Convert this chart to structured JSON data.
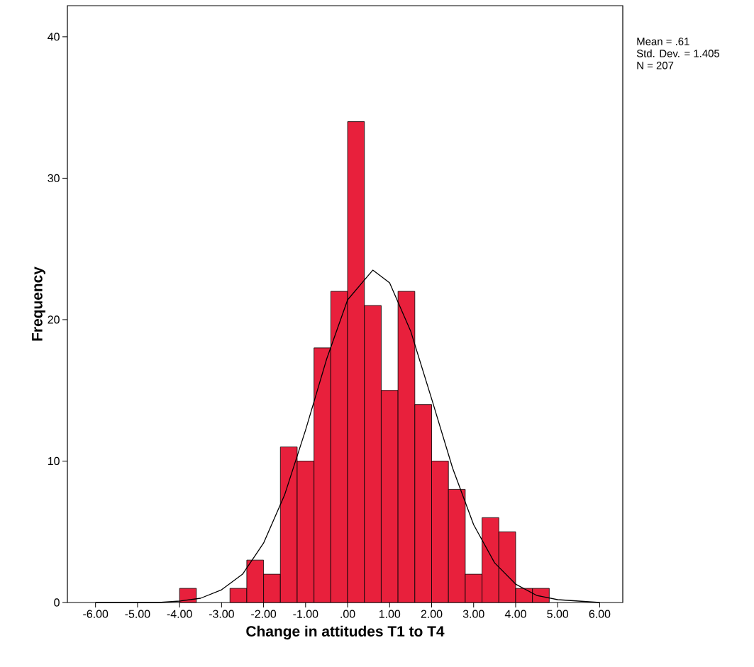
{
  "chart_data": {
    "type": "histogram",
    "xlabel": "Change in attitudes T1 to T4",
    "ylabel": "Frequency",
    "annotations": [
      "Mean = .61",
      "Std. Dev. = 1.405",
      "N = 207"
    ],
    "series": [
      {
        "color": "#e8203c",
        "bins": [
          -4.0,
          -3.6,
          -3.2,
          -2.8,
          -2.4,
          -2.0,
          -1.6,
          -1.2,
          -0.8,
          -0.4,
          0.0,
          0.4,
          0.8,
          1.2,
          1.6,
          2.0,
          2.4,
          2.8,
          3.2,
          3.6,
          4.0,
          4.4,
          4.8
        ],
        "values": [
          1,
          0,
          0,
          1,
          3,
          2,
          11,
          10,
          18,
          22,
          34,
          21,
          15,
          22,
          14,
          10,
          8,
          2,
          6,
          5,
          1,
          1
        ]
      },
      {
        "type": "line",
        "color": "#000000",
        "x": [
          -6.0,
          -5.5,
          -5.0,
          -4.5,
          -4.0,
          -3.5,
          -3.0,
          -2.5,
          -2.0,
          -1.5,
          -1.0,
          -0.5,
          0.0,
          0.6,
          1.0,
          1.5,
          2.0,
          2.5,
          3.0,
          3.5,
          4.0,
          4.5,
          5.0,
          5.5,
          6.0
        ],
        "values": [
          0.0,
          0.0,
          0.0,
          0.0,
          0.1,
          0.3,
          0.9,
          2.0,
          4.2,
          7.6,
          12.2,
          17.2,
          21.4,
          23.5,
          22.6,
          19.2,
          14.4,
          9.5,
          5.5,
          2.8,
          1.3,
          0.5,
          0.2,
          0.1,
          0.0
        ]
      }
    ],
    "xlim": [
      -6.67,
      6.55
    ],
    "ylim": [
      0,
      42.2
    ],
    "xticks": [
      {
        "value": -6,
        "label": "-6.00"
      },
      {
        "value": -5,
        "label": "-5.00"
      },
      {
        "value": -4,
        "label": "-4.00"
      },
      {
        "value": -3,
        "label": "-3.00"
      },
      {
        "value": -2,
        "label": "-2.00"
      },
      {
        "value": -1,
        "label": "-1.00"
      },
      {
        "value": 0,
        "label": ".00"
      },
      {
        "value": 1,
        "label": "1.00"
      },
      {
        "value": 2,
        "label": "2.00"
      },
      {
        "value": 3,
        "label": "3.00"
      },
      {
        "value": 4,
        "label": "4.00"
      },
      {
        "value": 5,
        "label": "5.00"
      },
      {
        "value": 6,
        "label": "6.00"
      }
    ],
    "yticks": [
      0,
      10,
      20,
      30,
      40
    ]
  }
}
